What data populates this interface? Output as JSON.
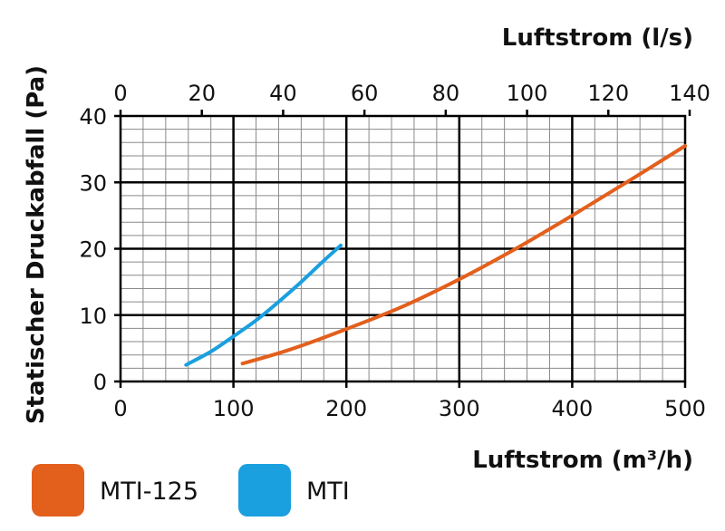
{
  "chart_data": {
    "type": "line",
    "xlabel_bottom": "Luftstrom (m³/h)",
    "xlabel_top": "Luftstrom (l/s)",
    "ylabel": "Statischer Druckabfall (Pa)",
    "xlim": [
      0,
      500
    ],
    "ylim": [
      0,
      40
    ],
    "x_ticks": [
      "0",
      "100",
      "200",
      "300",
      "400",
      "500"
    ],
    "top_ticks": [
      "0",
      "20",
      "40",
      "60",
      "80",
      "100",
      "120",
      "140"
    ],
    "y_ticks": [
      "0",
      "10",
      "20",
      "30",
      "40"
    ],
    "grid": true,
    "legend_position": "bottom-left",
    "series": [
      {
        "name": "MTI-125",
        "color": "#e35f1c",
        "x": [
          108,
          150,
          200,
          250,
          300,
          350,
          400,
          450,
          500
        ],
        "y": [
          2.7,
          4.8,
          7.9,
          11.3,
          15.4,
          20.0,
          25.0,
          30.2,
          35.5
        ]
      },
      {
        "name": "MTI",
        "color": "#1a9fdf",
        "x": [
          58,
          80,
          100,
          120,
          140,
          160,
          180,
          195
        ],
        "y": [
          2.5,
          4.5,
          6.8,
          9.2,
          12.0,
          15.0,
          18.2,
          20.5
        ]
      }
    ]
  }
}
